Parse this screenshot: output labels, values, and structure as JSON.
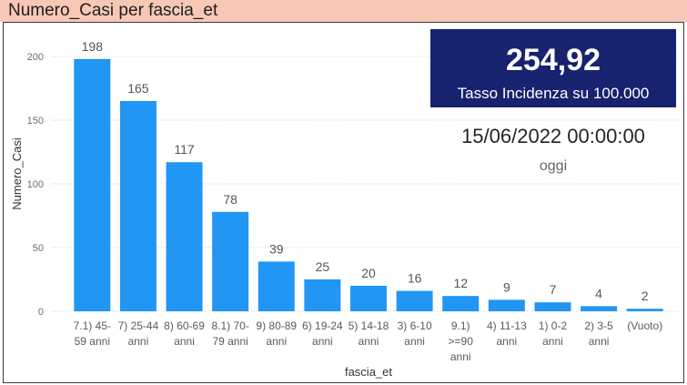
{
  "visual": {
    "title_bg_color": "#F7C8B6",
    "frame_color": "#3A3A3A"
  },
  "kpi_card": {
    "value": "254,92",
    "label": "Tasso Incidenza su 100.000",
    "bg_color": "#17236F"
  },
  "date_card": {
    "value": "15/06/2022 00:00:00",
    "label": "oggi"
  },
  "chart_data": {
    "type": "bar",
    "title": "Numero_Casi per fascia_et",
    "categories": [
      "7.1) 45-59 anni",
      "7) 25-44 anni",
      "8) 60-69 anni",
      "8.1) 70-79 anni",
      "9) 80-89 anni",
      "6) 19-24 anni",
      "5) 14-18 anni",
      "3) 6-10 anni",
      "9.1) >=90 anni",
      "4) 11-13 anni",
      "1) 0-2 anni",
      "2) 3-5 anni",
      "(Vuoto)"
    ],
    "values": [
      198,
      165,
      117,
      78,
      39,
      25,
      20,
      16,
      12,
      9,
      7,
      4,
      2
    ],
    "xlabel": "fascia_et",
    "ylabel": "Numero_Casi",
    "ylim": [
      0,
      200
    ],
    "yticks": [
      0,
      50,
      100,
      150,
      200
    ],
    "grid": true,
    "data_labels": true,
    "bar_color": "#2196F3"
  }
}
